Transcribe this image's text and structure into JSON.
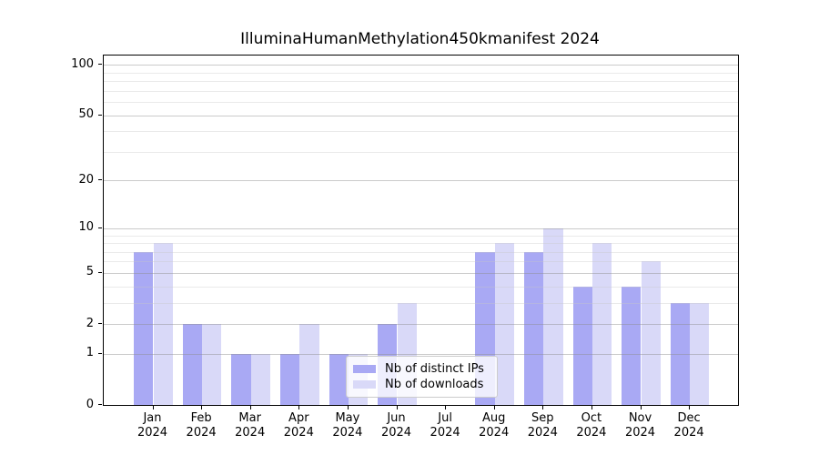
{
  "title": "IlluminaHumanMethylation450kmanifest 2024",
  "colors": {
    "distinct_ips": "#A9A9F4",
    "downloads": "#D9D9F8"
  },
  "legend": {
    "items": [
      {
        "label": "Nb of distinct IPs",
        "color_key": "distinct_ips"
      },
      {
        "label": "Nb of downloads",
        "color_key": "downloads"
      }
    ]
  },
  "chart_data": {
    "type": "bar",
    "title": "IlluminaHumanMethylation450kmanifest 2024",
    "categories": [
      "Jan\n2024",
      "Feb\n2024",
      "Mar\n2024",
      "Apr\n2024",
      "May\n2024",
      "Jun\n2024",
      "Jul\n2024",
      "Aug\n2024",
      "Sep\n2024",
      "Oct\n2024",
      "Nov\n2024",
      "Dec\n2024"
    ],
    "series": [
      {
        "name": "Nb of distinct IPs",
        "color_key": "distinct_ips",
        "values": [
          7,
          2,
          1,
          1,
          1,
          2,
          0,
          7,
          7,
          4,
          4,
          3
        ]
      },
      {
        "name": "Nb of downloads",
        "color_key": "downloads",
        "values": [
          8,
          2,
          1,
          2,
          1,
          3,
          0,
          8,
          10,
          8,
          6,
          3
        ]
      }
    ],
    "xlabel": "",
    "ylabel": "",
    "yscale": "log1p",
    "ylim": [
      0,
      113.5
    ],
    "yticks": [
      0,
      1,
      2,
      5,
      10,
      20,
      50,
      100
    ],
    "minor_yticks": [
      3,
      4,
      6,
      7,
      8,
      9,
      30,
      40,
      60,
      70,
      80,
      90
    ],
    "grid": true,
    "legend_position": "lower right inside"
  }
}
